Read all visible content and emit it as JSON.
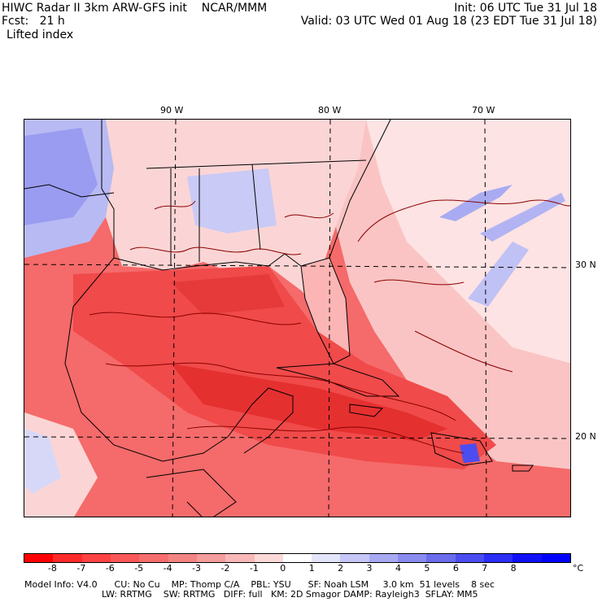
{
  "header": {
    "line1_left": "HIWC Radar II 3km ARW-GFS init    NCAR/MMM",
    "line1_right": "Init: 06 UTC Tue 31 Jul 18",
    "line2_left": "Fcst:   21 h",
    "line2_right": "Valid: 03 UTC Wed 01 Aug 18 (23 EDT Tue 31 Jul 18)",
    "field_name": "Lifted index"
  },
  "map": {
    "lon_labels": [
      "90 W",
      "80 W",
      "70 W"
    ],
    "lat_labels": [
      "30 N",
      "20 N"
    ],
    "colors": {
      "strong_unstable": "#f03a3a",
      "unstable": "#f56a6a",
      "mild": "#f9a5a5",
      "neutral": "#fde0e0",
      "stable": "#c9caf5",
      "strong_stable": "#8a8cf0"
    }
  },
  "colorbar": {
    "labels": [
      "-8",
      "-7",
      "-6",
      "-5",
      "-4",
      "-3",
      "-2",
      "-1",
      "0",
      "1",
      "2",
      "3",
      "4",
      "5",
      "6",
      "7",
      "8"
    ],
    "unit": "°C",
    "colors": [
      "#ff0000",
      "#ff2a2a",
      "#fd4343",
      "#f95858",
      "#f56d6d",
      "#f38484",
      "#f59c9c",
      "#f8b8b8",
      "#fcd9d9",
      "#ffffff",
      "#e4e4fb",
      "#c6c7f7",
      "#a8a9f3",
      "#898bef",
      "#6a6cec",
      "#4b4df0",
      "#2b2ef5",
      "#1010f8",
      "#0000ff"
    ]
  },
  "footer": {
    "line1": "Model Info: V4.0      CU: No Cu    MP: Thomp C/A    PBL: YSU      SF: Noah LSM     3.0 km  51 levels    8 sec",
    "line2": "LW: RRTMG    SW: RRTMG   DIFF: full   KM: 2D Smagor DAMP: Rayleigh3  SFLAY: MM5"
  }
}
